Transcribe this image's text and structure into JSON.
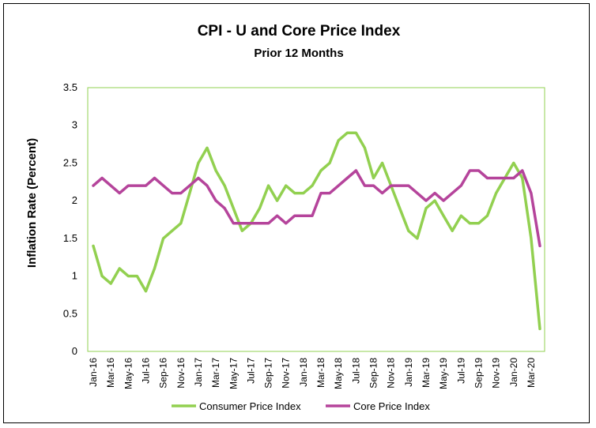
{
  "chart_data": {
    "type": "line",
    "title": "CPI - U and Core Price Index",
    "subtitle": "Prior 12 Months",
    "xlabel": "",
    "ylabel": "Inflation Rate (Percent)",
    "ylim": [
      0,
      3.5
    ],
    "yticks": [
      "0",
      "0.5",
      "1",
      "1.5",
      "2",
      "2.5",
      "3",
      "3.5"
    ],
    "grid": false,
    "legend": "bottom",
    "x": [
      "Jan-16",
      "Feb-16",
      "Mar-16",
      "Apr-16",
      "May-16",
      "Jun-16",
      "Jul-16",
      "Aug-16",
      "Sep-16",
      "Oct-16",
      "Nov-16",
      "Dec-16",
      "Jan-17",
      "Feb-17",
      "Mar-17",
      "Apr-17",
      "May-17",
      "Jun-17",
      "Jul-17",
      "Aug-17",
      "Sep-17",
      "Oct-17",
      "Nov-17",
      "Dec-17",
      "Jan-18",
      "Feb-18",
      "Mar-18",
      "Apr-18",
      "May-18",
      "Jun-18",
      "Jul-18",
      "Aug-18",
      "Sep-18",
      "Oct-18",
      "Nov-18",
      "Dec-18",
      "Jan-19",
      "Feb-19",
      "Mar-19",
      "Apr-19",
      "May-19",
      "Jun-19",
      "Jul-19",
      "Aug-19",
      "Sep-19",
      "Oct-19",
      "Nov-19",
      "Dec-19",
      "Jan-20",
      "Feb-20",
      "Mar-20",
      "Apr-20"
    ],
    "xtick_labels": [
      "Jan-16",
      "Mar-16",
      "May-16",
      "Jul-16",
      "Sep-16",
      "Nov-16",
      "Jan-17",
      "Mar-17",
      "May-17",
      "Jul-17",
      "Sep-17",
      "Nov-17",
      "Jan-18",
      "Mar-18",
      "May-18",
      "Jul-18",
      "Sep-18",
      "Nov-18",
      "Jan-19",
      "Mar-19",
      "May-19",
      "Jul-19",
      "Sep-19",
      "Nov-19",
      "Jan-20",
      "Mar-20"
    ],
    "series": [
      {
        "name": "Consumer Price Index",
        "color": "#92d050",
        "values": [
          1.4,
          1.0,
          0.9,
          1.1,
          1.0,
          1.0,
          0.8,
          1.1,
          1.5,
          1.6,
          1.7,
          2.1,
          2.5,
          2.7,
          2.4,
          2.2,
          1.9,
          1.6,
          1.7,
          1.9,
          2.2,
          2.0,
          2.2,
          2.1,
          2.1,
          2.2,
          2.4,
          2.5,
          2.8,
          2.9,
          2.9,
          2.7,
          2.3,
          2.5,
          2.2,
          1.9,
          1.6,
          1.5,
          1.9,
          2.0,
          1.8,
          1.6,
          1.8,
          1.7,
          1.7,
          1.8,
          2.1,
          2.3,
          2.5,
          2.3,
          1.5,
          0.3
        ]
      },
      {
        "name": "Core Price Index",
        "color": "#b5449b",
        "values": [
          2.2,
          2.3,
          2.2,
          2.1,
          2.2,
          2.2,
          2.2,
          2.3,
          2.2,
          2.1,
          2.1,
          2.2,
          2.3,
          2.2,
          2.0,
          1.9,
          1.7,
          1.7,
          1.7,
          1.7,
          1.7,
          1.8,
          1.7,
          1.8,
          1.8,
          1.8,
          2.1,
          2.1,
          2.2,
          2.3,
          2.4,
          2.2,
          2.2,
          2.1,
          2.2,
          2.2,
          2.2,
          2.1,
          2.0,
          2.1,
          2.0,
          2.1,
          2.2,
          2.4,
          2.4,
          2.3,
          2.3,
          2.3,
          2.3,
          2.4,
          2.1,
          1.4
        ]
      }
    ]
  }
}
